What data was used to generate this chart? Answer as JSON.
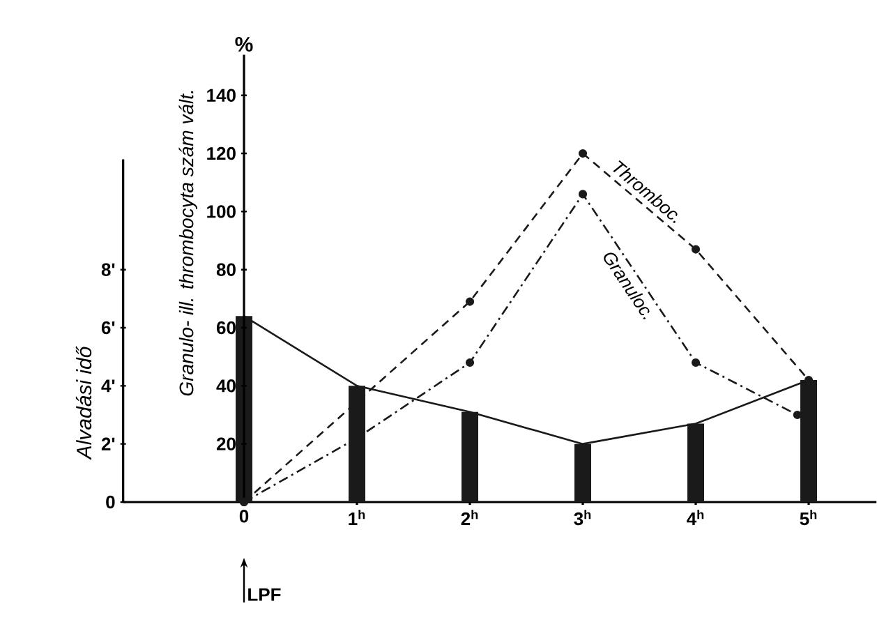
{
  "chart_data": {
    "type": "line",
    "ylabel": "Granulo- ill. thrombocyta szám vált.",
    "y2label": "Alvadási idő",
    "annotations": [
      "%",
      "LPF"
    ],
    "xlim": [
      -1.07,
      5.6
    ],
    "xticks": [
      {
        "value": 0,
        "label": "0"
      },
      {
        "value": 1,
        "label": "1$^{h}$"
      },
      {
        "value": 2,
        "label": "2$^{h}$"
      },
      {
        "value": 3,
        "label": "3$^{h}$"
      },
      {
        "value": 4,
        "label": "4$^{h}$"
      },
      {
        "value": 5,
        "label": "5$^{h}$"
      }
    ],
    "ylim": [
      0,
      154
    ],
    "yticks": [
      20,
      40,
      60,
      80,
      100,
      120,
      140
    ],
    "y2lim": [
      0,
      11.8
    ],
    "y2ticks": [
      0,
      {
        "value": 2,
        "label": "2'"
      },
      {
        "value": 4,
        "label": "4'"
      },
      {
        "value": 6,
        "label": "6'"
      },
      {
        "value": 8,
        "label": "8'"
      }
    ],
    "series": [
      {
        "type": "bar",
        "axis": "y2",
        "color": "#1a1a1a",
        "x": [
          0,
          1,
          2,
          3,
          4,
          5
        ],
        "values": [
          6.4,
          4.0,
          3.1,
          2.0,
          2.7,
          4.2
        ]
      },
      {
        "axis": "y2",
        "color": "#1a1a1a",
        "line_style": "solid",
        "marker": "none",
        "x": [
          0,
          1,
          2,
          3,
          4,
          5
        ],
        "values": [
          6.4,
          4.0,
          3.1,
          2.0,
          2.7,
          4.2
        ]
      },
      {
        "name": "Granuloc.",
        "color": "#1a1a1a",
        "line_style": "dashdotted",
        "marker": "circle",
        "x": [
          0,
          1,
          2,
          3,
          4,
          4.9
        ],
        "values": [
          0,
          22,
          48,
          106,
          48,
          30
        ]
      },
      {
        "name": "Thromboc.",
        "color": "#1a1a1a",
        "line_style": "dashed",
        "marker": "circle",
        "x": [
          0,
          2,
          3,
          4,
          5
        ],
        "values": [
          0,
          69,
          120,
          87,
          42
        ]
      }
    ]
  }
}
